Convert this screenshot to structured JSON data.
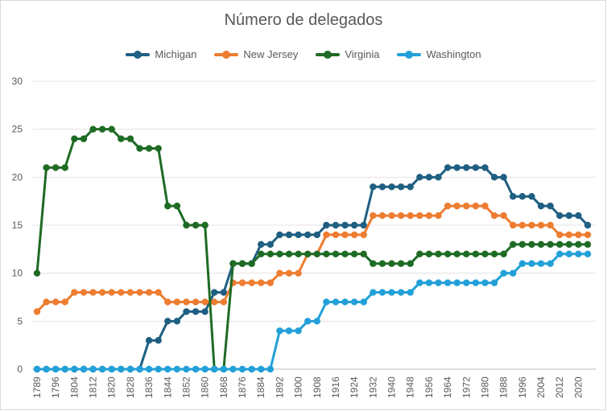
{
  "chart_data": {
    "type": "line",
    "title": "Número de delegados",
    "xlabel": "",
    "ylabel": "",
    "ylim": [
      0,
      30
    ],
    "yticks": [
      0,
      5,
      10,
      15,
      20,
      25,
      30
    ],
    "grid": "horizontal",
    "legend_position": "top",
    "x": [
      1789,
      1792,
      1796,
      1800,
      1804,
      1808,
      1812,
      1816,
      1820,
      1824,
      1828,
      1832,
      1836,
      1840,
      1844,
      1848,
      1852,
      1856,
      1860,
      1864,
      1868,
      1872,
      1876,
      1880,
      1884,
      1888,
      1892,
      1896,
      1900,
      1904,
      1908,
      1912,
      1916,
      1920,
      1924,
      1928,
      1932,
      1936,
      1940,
      1944,
      1948,
      1952,
      1956,
      1960,
      1964,
      1968,
      1972,
      1976,
      1980,
      1984,
      1988,
      1992,
      1996,
      2000,
      2004,
      2008,
      2012,
      2016,
      2020,
      2024
    ],
    "xtick_labels": [
      "1789",
      "1796",
      "1804",
      "1812",
      "1820",
      "1828",
      "1836",
      "1844",
      "1852",
      "1860",
      "1868",
      "1876",
      "1884",
      "1892",
      "1900",
      "1908",
      "1916",
      "1924",
      "1932",
      "1940",
      "1948",
      "1956",
      "1964",
      "1972",
      "1980",
      "1988",
      "1996",
      "2004",
      "2012",
      "2020"
    ],
    "series": [
      {
        "name": "Michigan",
        "color": "#1f5f82",
        "values": [
          0,
          0,
          0,
          0,
          0,
          0,
          0,
          0,
          0,
          0,
          0,
          0,
          3,
          3,
          5,
          5,
          6,
          6,
          6,
          8,
          8,
          11,
          11,
          11,
          13,
          13,
          14,
          14,
          14,
          14,
          14,
          15,
          15,
          15,
          15,
          15,
          19,
          19,
          19,
          19,
          19,
          20,
          20,
          20,
          21,
          21,
          21,
          21,
          21,
          20,
          20,
          18,
          18,
          18,
          17,
          17,
          16,
          16,
          16,
          15
        ]
      },
      {
        "name": "New Jersey",
        "color": "#ed7d31",
        "values": [
          6,
          7,
          7,
          7,
          8,
          8,
          8,
          8,
          8,
          8,
          8,
          8,
          8,
          8,
          7,
          7,
          7,
          7,
          7,
          7,
          7,
          9,
          9,
          9,
          9,
          9,
          10,
          10,
          10,
          12,
          12,
          14,
          14,
          14,
          14,
          14,
          16,
          16,
          16,
          16,
          16,
          16,
          16,
          16,
          17,
          17,
          17,
          17,
          17,
          16,
          16,
          15,
          15,
          15,
          15,
          15,
          14,
          14,
          14,
          14
        ]
      },
      {
        "name": "Virginia",
        "color": "#1e6b24",
        "values": [
          10,
          21,
          21,
          21,
          24,
          24,
          25,
          25,
          25,
          24,
          24,
          23,
          23,
          23,
          17,
          17,
          15,
          15,
          15,
          0,
          0,
          11,
          11,
          11,
          12,
          12,
          12,
          12,
          12,
          12,
          12,
          12,
          12,
          12,
          12,
          12,
          11,
          11,
          11,
          11,
          11,
          12,
          12,
          12,
          12,
          12,
          12,
          12,
          12,
          12,
          12,
          13,
          13,
          13,
          13,
          13,
          13,
          13,
          13,
          13
        ]
      },
      {
        "name": "Washington",
        "color": "#22a0d8",
        "values": [
          0,
          0,
          0,
          0,
          0,
          0,
          0,
          0,
          0,
          0,
          0,
          0,
          0,
          0,
          0,
          0,
          0,
          0,
          0,
          0,
          0,
          0,
          0,
          0,
          0,
          0,
          4,
          4,
          4,
          5,
          5,
          7,
          7,
          7,
          7,
          7,
          8,
          8,
          8,
          8,
          8,
          9,
          9,
          9,
          9,
          9,
          9,
          9,
          9,
          9,
          10,
          10,
          11,
          11,
          11,
          11,
          12,
          12,
          12,
          12
        ]
      }
    ]
  }
}
